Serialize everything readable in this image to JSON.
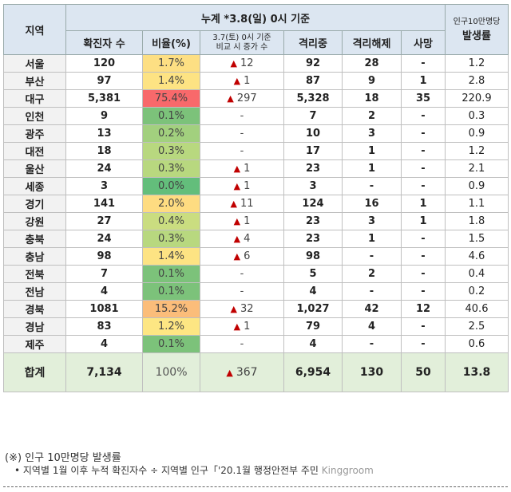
{
  "header": {
    "region": "지역",
    "group": "누계 *3.8(일) 0시 기준",
    "confirmed": "확진자 수",
    "ratio": "비율(%)",
    "increase_line1": "3.7(토) 0시 기준",
    "increase_line2": "비교 시 증가 수",
    "isolated": "격리중",
    "released": "격리해제",
    "deaths": "사망",
    "rate_line1": "인구10만명당",
    "rate_line2": "발생률"
  },
  "rows": [
    {
      "region": "서울",
      "confirmed": "120",
      "ratio": "1.7%",
      "ratio_color": "#fddf83",
      "increase": "12",
      "isolated": "92",
      "released": "28",
      "deaths": "-",
      "rate": "1.2"
    },
    {
      "region": "부산",
      "confirmed": "97",
      "ratio": "1.4%",
      "ratio_color": "#fde383",
      "increase": "1",
      "isolated": "87",
      "released": "9",
      "deaths": "1",
      "rate": "2.8"
    },
    {
      "region": "대구",
      "confirmed": "5,381",
      "ratio": "75.4%",
      "ratio_color": "#f8696b",
      "increase": "297",
      "isolated": "5,328",
      "released": "18",
      "deaths": "35",
      "rate": "220.9"
    },
    {
      "region": "인천",
      "confirmed": "9",
      "ratio": "0.1%",
      "ratio_color": "#7cc27a",
      "increase": "-",
      "isolated": "7",
      "released": "2",
      "deaths": "-",
      "rate": "0.3"
    },
    {
      "region": "광주",
      "confirmed": "13",
      "ratio": "0.2%",
      "ratio_color": "#a2d07e",
      "increase": "-",
      "isolated": "10",
      "released": "3",
      "deaths": "-",
      "rate": "0.9"
    },
    {
      "region": "대전",
      "confirmed": "18",
      "ratio": "0.3%",
      "ratio_color": "#b8d87f",
      "increase": "-",
      "isolated": "17",
      "released": "1",
      "deaths": "-",
      "rate": "1.2"
    },
    {
      "region": "울산",
      "confirmed": "24",
      "ratio": "0.3%",
      "ratio_color": "#b8d87f",
      "increase": "1",
      "isolated": "23",
      "released": "1",
      "deaths": "-",
      "rate": "2.1"
    },
    {
      "region": "세종",
      "confirmed": "3",
      "ratio": "0.0%",
      "ratio_color": "#63be7b",
      "increase": "1",
      "isolated": "3",
      "released": "-",
      "deaths": "-",
      "rate": "0.9"
    },
    {
      "region": "경기",
      "confirmed": "141",
      "ratio": "2.0%",
      "ratio_color": "#fedc81",
      "increase": "11",
      "isolated": "124",
      "released": "16",
      "deaths": "1",
      "rate": "1.1"
    },
    {
      "region": "강원",
      "confirmed": "27",
      "ratio": "0.4%",
      "ratio_color": "#cadd80",
      "increase": "1",
      "isolated": "23",
      "released": "3",
      "deaths": "1",
      "rate": "1.8"
    },
    {
      "region": "충북",
      "confirmed": "24",
      "ratio": "0.3%",
      "ratio_color": "#b8d87f",
      "increase": "4",
      "isolated": "23",
      "released": "1",
      "deaths": "-",
      "rate": "1.5"
    },
    {
      "region": "충남",
      "confirmed": "98",
      "ratio": "1.4%",
      "ratio_color": "#fde383",
      "increase": "6",
      "isolated": "98",
      "released": "-",
      "deaths": "-",
      "rate": "4.6"
    },
    {
      "region": "전북",
      "confirmed": "7",
      "ratio": "0.1%",
      "ratio_color": "#7cc27a",
      "increase": "-",
      "isolated": "5",
      "released": "2",
      "deaths": "-",
      "rate": "0.4"
    },
    {
      "region": "전남",
      "confirmed": "4",
      "ratio": "0.1%",
      "ratio_color": "#7cc27a",
      "increase": "-",
      "isolated": "4",
      "released": "-",
      "deaths": "-",
      "rate": "0.2"
    },
    {
      "region": "경북",
      "confirmed": "1081",
      "ratio": "15.2%",
      "ratio_color": "#fbbd7a",
      "increase": "32",
      "isolated": "1,027",
      "released": "42",
      "deaths": "12",
      "rate": "40.6"
    },
    {
      "region": "경남",
      "confirmed": "83",
      "ratio": "1.2%",
      "ratio_color": "#fde683",
      "increase": "1",
      "isolated": "79",
      "released": "4",
      "deaths": "-",
      "rate": "2.5"
    },
    {
      "region": "제주",
      "confirmed": "4",
      "ratio": "0.1%",
      "ratio_color": "#7cc27a",
      "increase": "-",
      "isolated": "4",
      "released": "-",
      "deaths": "-",
      "rate": "0.6"
    }
  ],
  "total": {
    "region": "합계",
    "confirmed": "7,134",
    "ratio": "100%",
    "increase": "367",
    "isolated": "6,954",
    "released": "130",
    "deaths": "50",
    "rate": "13.8"
  },
  "footnote": {
    "title": "(※) 인구 10만명당 발생률",
    "line": "• 지역별 1월 이후 누적 확진자수 ÷ 지역별 인구「'20.1월 행정안전부 주민",
    "watermark": "Kinggroom"
  },
  "icons": {
    "increase": "red-triangle-up-icon"
  }
}
